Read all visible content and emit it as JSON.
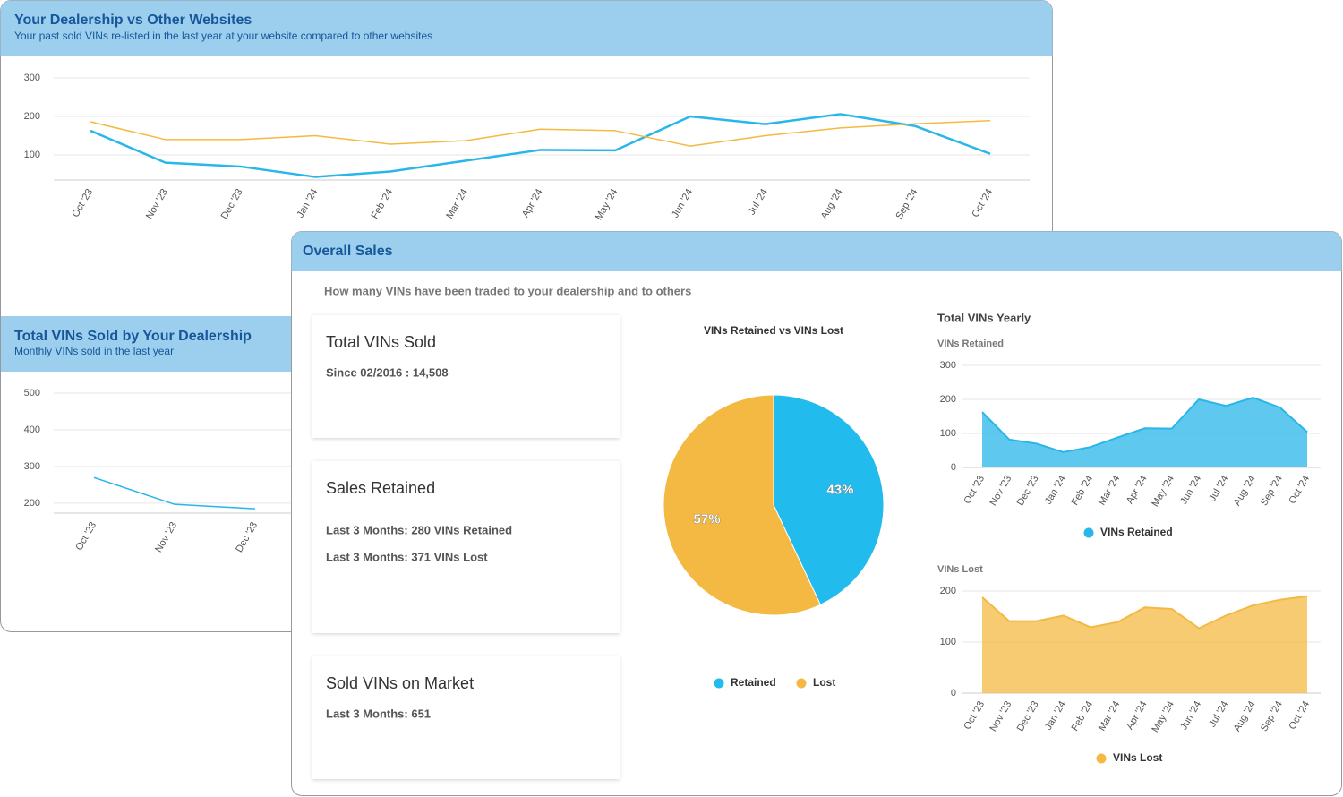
{
  "panels": [
    {
      "title": "Your Dealership vs Other Websites",
      "subtitle": "Your past sold VINs re-listed in the last year at your website compared to other websites"
    },
    {
      "title": "Total VINs Sold by Your Dealership",
      "subtitle": "Monthly VINs sold in the last year"
    },
    {
      "title": "Overall Sales",
      "subtitle": "How many VINs have been traded to your dealership and to others",
      "cards": [
        {
          "title": "Total VINs Sold",
          "lines": [
            "Since 02/2016 : 14,508"
          ]
        },
        {
          "title": "Sales Retained",
          "lines": [
            "Last 3 Months: 280 VINs Retained",
            "Last 3 Months: 371 VINs Lost"
          ]
        },
        {
          "title": "Sold VINs on Market",
          "lines": [
            "Last 3 Months: 651"
          ]
        }
      ],
      "section_title": "Total VINs Yearly"
    }
  ],
  "chart_data": [
    {
      "type": "line",
      "categories": [
        "Oct '23",
        "Nov '23",
        "Dec '23",
        "Jan '24",
        "Feb '24",
        "Mar '24",
        "Apr '24",
        "May '24",
        "Jun '24",
        "Jul '24",
        "Aug '24",
        "Sep '24",
        "Oct '24"
      ],
      "series": [
        {
          "color": "#29b6e8",
          "values": [
            163,
            80,
            70,
            43,
            57,
            85,
            113,
            112,
            200,
            180,
            206,
            175,
            103
          ]
        },
        {
          "color": "#f4b942",
          "values": [
            186,
            140,
            140,
            150,
            128,
            137,
            167,
            163,
            123,
            150,
            170,
            181,
            189
          ]
        }
      ],
      "ylim": [
        35,
        300
      ],
      "yticks": [
        100,
        200,
        300
      ],
      "grid": true
    },
    {
      "type": "line",
      "categories": [
        "Oct '23",
        "Nov '23",
        "Dec '23"
      ],
      "series": [
        {
          "color": "#29b6e8",
          "values": [
            270,
            197,
            185
          ]
        }
      ],
      "ylim": [
        173,
        500
      ],
      "yticks": [
        200,
        300,
        400,
        500
      ],
      "grid": true
    },
    {
      "type": "pie",
      "title": "VINs Retained vs VINs Lost",
      "categories": [
        "Retained",
        "Lost"
      ],
      "values": [
        43,
        57
      ],
      "value_labels": [
        "43%",
        "57%"
      ],
      "colors": [
        "#22bbee",
        "#f4b942"
      ]
    },
    {
      "type": "area",
      "subtitle": "VINs Retained",
      "categories": [
        "Oct '23",
        "Nov '23",
        "Dec '23",
        "Jan '24",
        "Feb '24",
        "Mar '24",
        "Apr '24",
        "May '24",
        "Jun '24",
        "Jul '24",
        "Aug '24",
        "Sep '24",
        "Oct '24"
      ],
      "series": [
        {
          "name": "VINs Retained",
          "color": "#29b6e8",
          "values": [
            163,
            82,
            70,
            45,
            60,
            88,
            115,
            114,
            200,
            181,
            205,
            176,
            104
          ]
        }
      ],
      "ylim": [
        0,
        300
      ],
      "yticks": [
        0,
        100,
        200,
        300
      ],
      "grid": true
    },
    {
      "type": "area",
      "subtitle": "VINs Lost",
      "categories": [
        "Oct '23",
        "Nov '23",
        "Dec '23",
        "Jan '24",
        "Feb '24",
        "Mar '24",
        "Apr '24",
        "May '24",
        "Jun '24",
        "Jul '24",
        "Aug '24",
        "Sep '24",
        "Oct '24"
      ],
      "series": [
        {
          "name": "VINs Lost",
          "color": "#f4b942",
          "values": [
            188,
            141,
            141,
            152,
            129,
            139,
            168,
            165,
            127,
            152,
            172,
            183,
            190
          ]
        }
      ],
      "ylim": [
        0,
        200
      ],
      "yticks": [
        0,
        100,
        200
      ],
      "grid": true
    }
  ]
}
